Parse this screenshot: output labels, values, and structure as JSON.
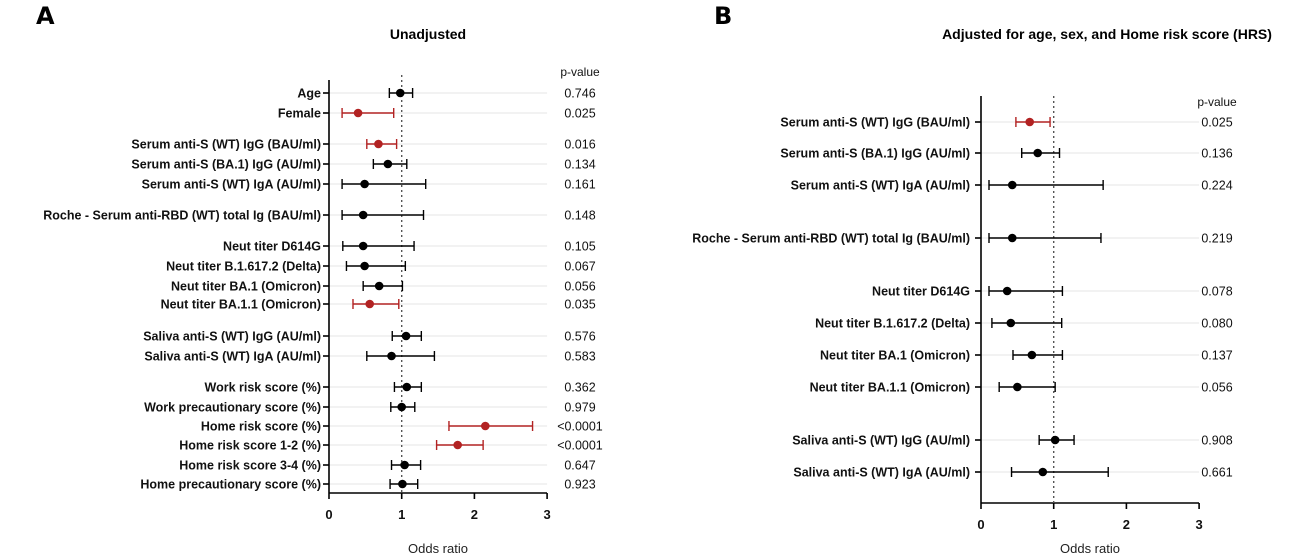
{
  "chart_data": [
    {
      "type": "forest",
      "panel": "A",
      "title": "Unadjusted",
      "xlabel": "Odds ratio",
      "xlim": [
        0,
        3
      ],
      "xticks": [
        "0",
        "1",
        "2",
        "3"
      ],
      "reference_value": 1,
      "pvalue_header": "p-value",
      "highlight_color": "#b22222",
      "default_color": "#000000",
      "rows": [
        {
          "label": "Age",
          "or": 0.98,
          "lo": 0.83,
          "hi": 1.15,
          "p": "0.746",
          "sig": false
        },
        {
          "label": "Female",
          "or": 0.4,
          "lo": 0.18,
          "hi": 0.89,
          "p": "0.025",
          "sig": true
        },
        {
          "label": "Serum anti-S (WT) IgG (BAU/ml)",
          "or": 0.68,
          "lo": 0.52,
          "hi": 0.93,
          "p": "0.016",
          "sig": true
        },
        {
          "label": "Serum anti-S (BA.1) IgG (AU/ml)",
          "or": 0.81,
          "lo": 0.61,
          "hi": 1.07,
          "p": "0.134",
          "sig": false
        },
        {
          "label": "Serum anti-S (WT) IgA (AU/ml)",
          "or": 0.49,
          "lo": 0.18,
          "hi": 1.33,
          "p": "0.161",
          "sig": false
        },
        {
          "label": "Roche - Serum anti-RBD (WT) total Ig (BAU/ml)",
          "or": 0.47,
          "lo": 0.18,
          "hi": 1.3,
          "p": "0.148",
          "sig": false
        },
        {
          "label": "Neut titer D614G",
          "or": 0.47,
          "lo": 0.19,
          "hi": 1.17,
          "p": "0.105",
          "sig": false
        },
        {
          "label": "Neut titer B.1.617.2 (Delta)",
          "or": 0.49,
          "lo": 0.24,
          "hi": 1.05,
          "p": "0.067",
          "sig": false
        },
        {
          "label": "Neut titer BA.1 (Omicron)",
          "or": 0.69,
          "lo": 0.47,
          "hi": 1.01,
          "p": "0.056",
          "sig": false
        },
        {
          "label": "Neut titer BA.1.1 (Omicron)",
          "or": 0.56,
          "lo": 0.33,
          "hi": 0.96,
          "p": "0.035",
          "sig": true
        },
        {
          "label": "Saliva anti-S (WT) IgG (AU/ml)",
          "or": 1.06,
          "lo": 0.87,
          "hi": 1.27,
          "p": "0.576",
          "sig": false
        },
        {
          "label": "Saliva anti-S (WT) IgA (AU/ml)",
          "or": 0.86,
          "lo": 0.52,
          "hi": 1.45,
          "p": "0.583",
          "sig": false
        },
        {
          "label": "Work risk score (%)",
          "or": 1.07,
          "lo": 0.9,
          "hi": 1.27,
          "p": "0.362",
          "sig": false
        },
        {
          "label": "Work precautionary score (%)",
          "or": 1.0,
          "lo": 0.85,
          "hi": 1.18,
          "p": "0.979",
          "sig": false
        },
        {
          "label": "Home risk score (%)",
          "or": 2.15,
          "lo": 1.65,
          "hi": 2.8,
          "p": "<0.0001",
          "sig": true
        },
        {
          "label": "Home risk score 1-2 (%)",
          "or": 1.77,
          "lo": 1.48,
          "hi": 2.12,
          "p": "<0.0001",
          "sig": true
        },
        {
          "label": "Home risk score 3-4 (%)",
          "or": 1.04,
          "lo": 0.86,
          "hi": 1.26,
          "p": "0.647",
          "sig": false
        },
        {
          "label": "Home precautionary score (%)",
          "or": 1.01,
          "lo": 0.84,
          "hi": 1.22,
          "p": "0.923",
          "sig": false
        }
      ]
    },
    {
      "type": "forest",
      "panel": "B",
      "title": "Adjusted for age, sex, and Home risk score (HRS)",
      "xlabel": "Odds ratio",
      "xlim": [
        0,
        3
      ],
      "xticks": [
        "0",
        "1",
        "2",
        "3"
      ],
      "reference_value": 1,
      "pvalue_header": "p-value",
      "highlight_color": "#b22222",
      "default_color": "#000000",
      "rows": [
        {
          "label": "Serum anti-S (WT) IgG (BAU/ml)",
          "or": 0.67,
          "lo": 0.48,
          "hi": 0.95,
          "p": "0.025",
          "sig": true
        },
        {
          "label": "Serum anti-S (BA.1) IgG (AU/ml)",
          "or": 0.78,
          "lo": 0.56,
          "hi": 1.08,
          "p": "0.136",
          "sig": false
        },
        {
          "label": "Serum anti-S (WT) IgA (AU/ml)",
          "or": 0.43,
          "lo": 0.11,
          "hi": 1.68,
          "p": "0.224",
          "sig": false
        },
        {
          "label": "Roche - Serum anti-RBD (WT) total Ig (BAU/ml)",
          "or": 0.43,
          "lo": 0.11,
          "hi": 1.65,
          "p": "0.219",
          "sig": false
        },
        {
          "label": "Neut titer D614G",
          "or": 0.36,
          "lo": 0.11,
          "hi": 1.12,
          "p": "0.078",
          "sig": false
        },
        {
          "label": "Neut titer B.1.617.2 (Delta)",
          "or": 0.41,
          "lo": 0.15,
          "hi": 1.11,
          "p": "0.080",
          "sig": false
        },
        {
          "label": "Neut titer BA.1 (Omicron)",
          "or": 0.7,
          "lo": 0.44,
          "hi": 1.12,
          "p": "0.137",
          "sig": false
        },
        {
          "label": "Neut titer BA.1.1 (Omicron)",
          "or": 0.5,
          "lo": 0.25,
          "hi": 1.02,
          "p": "0.056",
          "sig": false
        },
        {
          "label": "Saliva anti-S (WT) IgG (AU/ml)",
          "or": 1.02,
          "lo": 0.8,
          "hi": 1.28,
          "p": "0.908",
          "sig": false
        },
        {
          "label": "Saliva anti-S (WT) IgA (AU/ml)",
          "or": 0.85,
          "lo": 0.42,
          "hi": 1.75,
          "p": "0.661",
          "sig": false
        }
      ]
    }
  ]
}
